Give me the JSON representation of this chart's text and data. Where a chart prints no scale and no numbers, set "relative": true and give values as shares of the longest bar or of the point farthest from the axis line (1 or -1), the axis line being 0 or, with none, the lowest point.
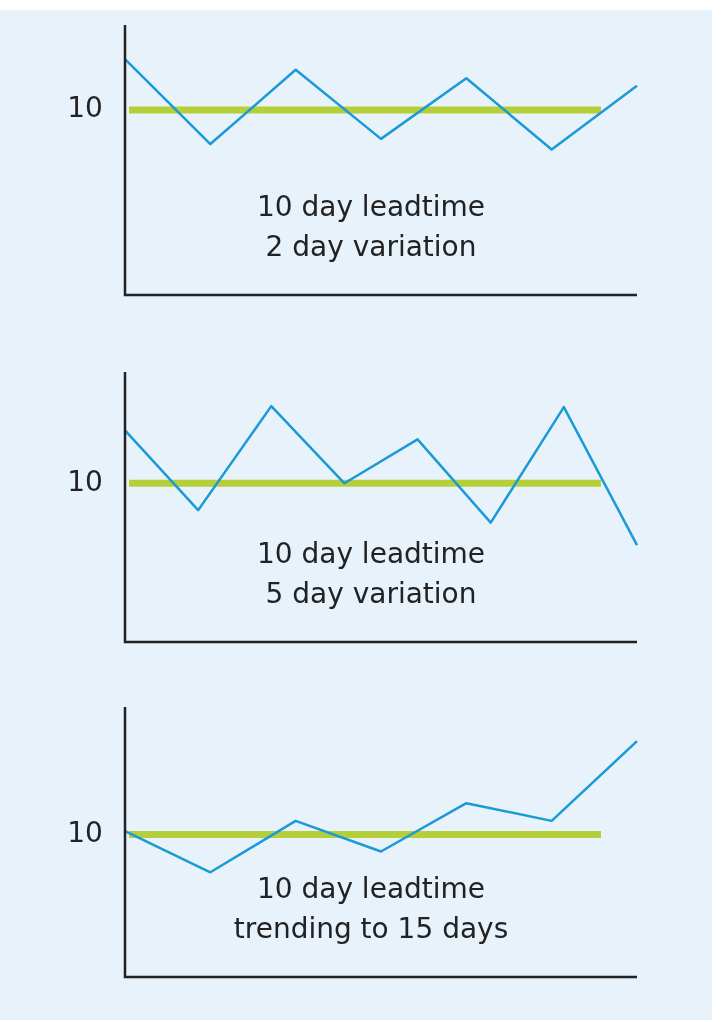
{
  "chart_data": [
    {
      "type": "line",
      "relative": true,
      "categories": [
        null,
        null,
        null,
        null,
        null,
        null,
        null
      ],
      "series": [
        {
          "color": "#1a9ad6",
          "values": [
            1,
            0.64,
            0.955,
            0.662,
            0.919,
            0.617,
            0.887
          ]
        }
      ],
      "ref_lines": [
        {
          "axis": "y",
          "value": 0.784,
          "color": "#b5cf3a"
        }
      ],
      "annotations": [
        "10",
        "10 day leadtime",
        "2 day variation"
      ],
      "legend": false
    },
    {
      "type": "line",
      "relative": true,
      "categories": [
        null,
        null,
        null,
        null,
        null,
        null,
        null,
        null
      ],
      "series": [
        {
          "color": "#1a9ad6",
          "values": [
            0.897,
            0.559,
            1,
            0.673,
            0.859,
            0.506,
            0.996,
            0.411
          ]
        }
      ],
      "ref_lines": [
        {
          "axis": "y",
          "value": 0.673,
          "color": "#b5cf3a"
        }
      ],
      "annotations": [
        "10",
        "10 day leadtime",
        "5 day variation"
      ],
      "legend": false
    },
    {
      "type": "line",
      "relative": true,
      "categories": [
        null,
        null,
        null,
        null,
        null,
        null,
        null
      ],
      "series": [
        {
          "color": "#1a9ad6",
          "values": [
            0.618,
            0.444,
            0.662,
            0.532,
            0.737,
            0.662,
            1
          ]
        }
      ],
      "ref_lines": [
        {
          "axis": "y",
          "value": 0.604,
          "color": "#b5cf3a"
        }
      ],
      "annotations": [
        "10",
        "10 day leadtime",
        "trending to 15 days"
      ],
      "legend": false
    }
  ]
}
